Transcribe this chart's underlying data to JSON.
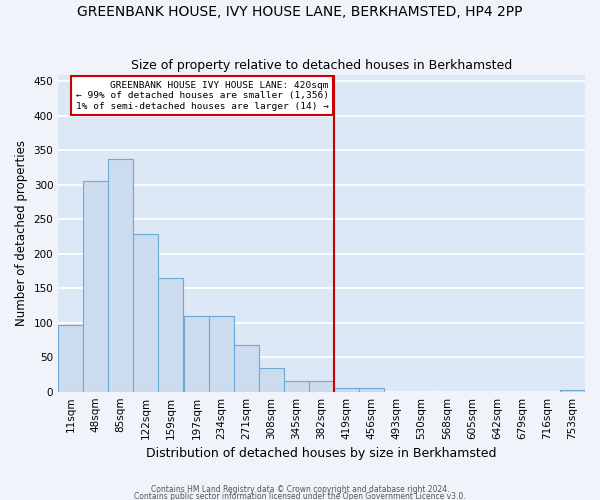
{
  "title": "GREENBANK HOUSE, IVY HOUSE LANE, BERKHAMSTED, HP4 2PP",
  "subtitle": "Size of property relative to detached houses in Berkhamsted",
  "xlabel": "Distribution of detached houses by size in Berkhamsted",
  "ylabel": "Number of detached properties",
  "footnote1": "Contains HM Land Registry data © Crown copyright and database right 2024.",
  "footnote2": "Contains public sector information licensed under the Open Government Licence v3.0.",
  "bar_color": "#ccdcee",
  "bar_edge_color": "#6aaad4",
  "bg_color": "#dce8f5",
  "fig_bg_color": "#f0f4fa",
  "grid_color": "#ffffff",
  "annotation_text": "GREENBANK HOUSE IVY HOUSE LANE: 420sqm\n← 99% of detached houses are smaller (1,356)\n1% of semi-detached houses are larger (14) →",
  "vline_x": 419,
  "vline_color": "#cc0000",
  "bins_left": [
    11,
    48,
    85,
    122,
    159,
    197,
    234,
    271,
    308,
    345,
    382,
    419,
    456,
    493,
    530,
    568,
    605,
    642,
    679,
    716,
    753
  ],
  "bin_width": 37,
  "bar_heights": [
    97,
    305,
    338,
    228,
    165,
    110,
    110,
    68,
    35,
    15,
    15,
    5,
    5,
    0,
    0,
    0,
    0,
    0,
    0,
    0,
    3
  ],
  "ylim": [
    0,
    460
  ],
  "xlim": [
    11,
    790
  ],
  "yticks": [
    0,
    50,
    100,
    150,
    200,
    250,
    300,
    350,
    400,
    450
  ],
  "title_fontsize": 10,
  "subtitle_fontsize": 9,
  "tick_fontsize": 7.5,
  "ylabel_fontsize": 8.5,
  "xlabel_fontsize": 9
}
